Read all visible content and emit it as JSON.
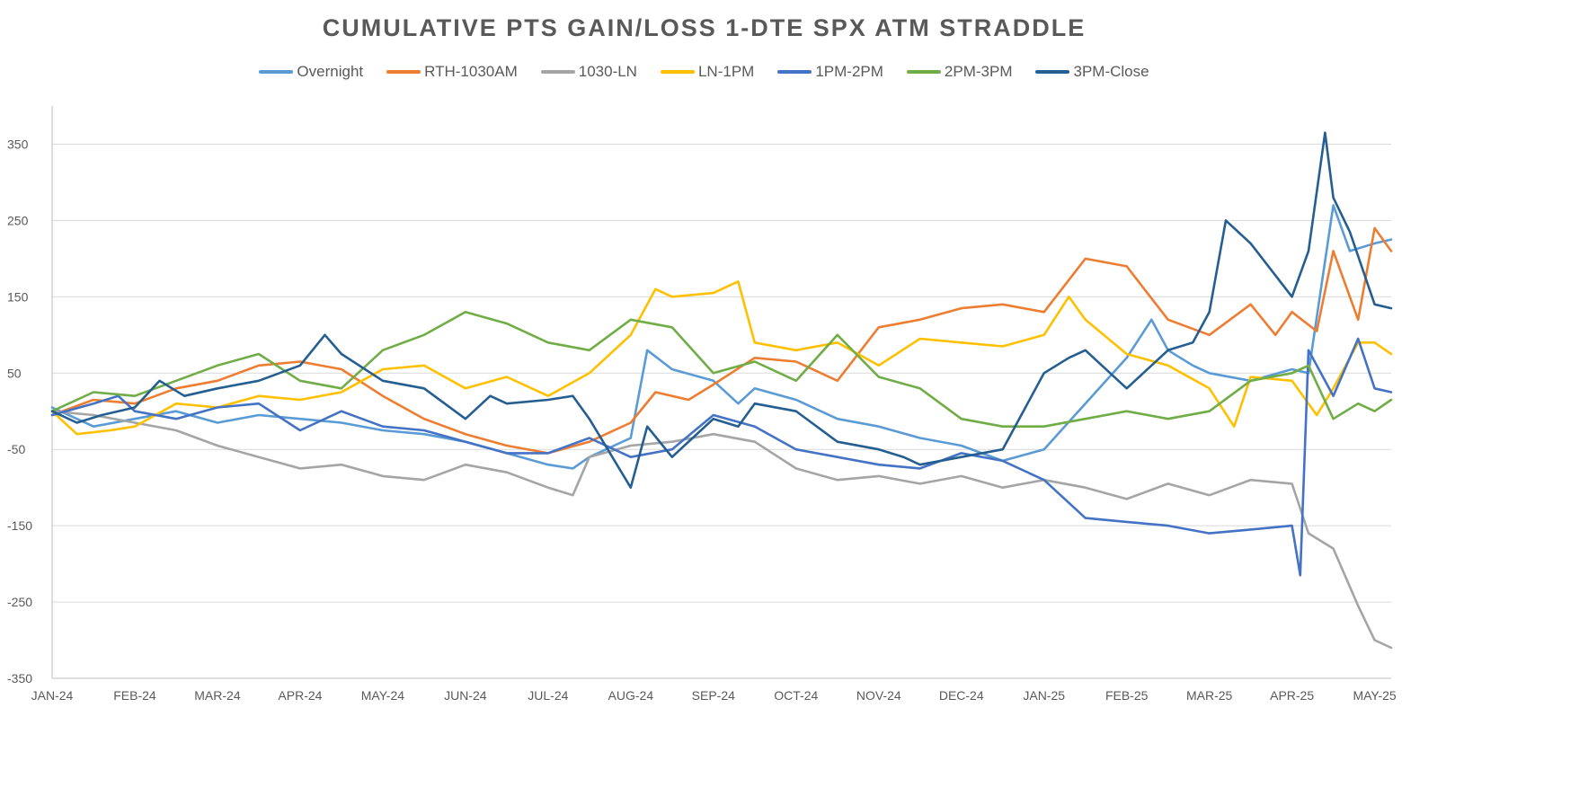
{
  "chart_data": {
    "type": "line",
    "title": "CUMULATIVE PTS GAIN/LOSS 1-DTE SPX ATM STRADDLE",
    "xlabel": "",
    "ylabel": "",
    "ylim": [
      -350,
      400
    ],
    "y_ticks": [
      "350",
      "250",
      "150",
      "50",
      "-50",
      "-150",
      "-250",
      "-350"
    ],
    "y_tick_values": [
      350,
      250,
      150,
      50,
      -50,
      -150,
      -250,
      -350
    ],
    "x_ticks": [
      "JAN-24",
      "FEB-24",
      "MAR-24",
      "APR-24",
      "MAY-24",
      "JUN-24",
      "JUL-24",
      "AUG-24",
      "SEP-24",
      "OCT-24",
      "NOV-24",
      "DEC-24",
      "JAN-25",
      "FEB-25",
      "MAR-25",
      "APR-25",
      "MAY-25"
    ],
    "x_tick_values": [
      0,
      1,
      2,
      3,
      4,
      5,
      6,
      7,
      8,
      9,
      10,
      11,
      12,
      13,
      14,
      15,
      16
    ],
    "xlim": [
      0,
      16.2
    ],
    "grid": true,
    "legend_position": "top",
    "series": [
      {
        "name": "Overnight",
        "color": "#5B9BD5",
        "x": [
          0,
          0.5,
          1,
          1.5,
          2,
          2.5,
          3,
          3.5,
          4,
          4.5,
          5,
          5.5,
          6,
          6.3,
          6.5,
          7,
          7.2,
          7.5,
          8,
          8.3,
          8.5,
          9,
          9.5,
          10,
          10.5,
          11,
          11.5,
          12,
          12.5,
          13,
          13.3,
          13.5,
          13.8,
          14,
          14.5,
          15,
          15.2,
          15.5,
          15.7,
          16,
          16.2
        ],
        "y": [
          5,
          -20,
          -10,
          0,
          -15,
          -5,
          -10,
          -15,
          -25,
          -30,
          -40,
          -55,
          -70,
          -75,
          -60,
          -35,
          80,
          55,
          40,
          10,
          30,
          15,
          -10,
          -20,
          -35,
          -45,
          -65,
          -50,
          10,
          70,
          120,
          80,
          60,
          50,
          40,
          55,
          50,
          270,
          210,
          220,
          225
        ]
      },
      {
        "name": "RTH-1030AM",
        "color": "#ED7D31",
        "x": [
          0,
          0.5,
          1,
          1.5,
          2,
          2.5,
          3,
          3.5,
          4,
          4.5,
          5,
          5.5,
          6,
          6.5,
          7,
          7.3,
          7.7,
          8,
          8.5,
          9,
          9.5,
          10,
          10.5,
          11,
          11.5,
          12,
          12.5,
          13,
          13.5,
          14,
          14.5,
          14.8,
          15,
          15.3,
          15.5,
          15.8,
          16,
          16.2
        ],
        "y": [
          -5,
          15,
          10,
          30,
          40,
          60,
          65,
          55,
          20,
          -10,
          -30,
          -45,
          -55,
          -40,
          -15,
          25,
          15,
          35,
          70,
          65,
          40,
          110,
          120,
          135,
          140,
          130,
          200,
          190,
          120,
          100,
          140,
          100,
          130,
          105,
          210,
          120,
          240,
          210
        ]
      },
      {
        "name": "1030-LN",
        "color": "#A5A5A5",
        "x": [
          0,
          0.5,
          1,
          1.5,
          2,
          2.5,
          3,
          3.5,
          4,
          4.5,
          5,
          5.5,
          6,
          6.3,
          6.5,
          7,
          7.5,
          8,
          8.5,
          9,
          9.5,
          10,
          10.5,
          11,
          11.5,
          12,
          12.5,
          13,
          13.5,
          14,
          14.5,
          15,
          15.2,
          15.5,
          15.8,
          16,
          16.2
        ],
        "y": [
          0,
          -5,
          -15,
          -25,
          -45,
          -60,
          -75,
          -70,
          -85,
          -90,
          -70,
          -80,
          -100,
          -110,
          -60,
          -45,
          -40,
          -30,
          -40,
          -75,
          -90,
          -85,
          -95,
          -85,
          -100,
          -90,
          -100,
          -115,
          -95,
          -110,
          -90,
          -95,
          -160,
          -180,
          -255,
          -300,
          -310
        ]
      },
      {
        "name": "LN-1PM",
        "color": "#FFC000",
        "x": [
          0,
          0.3,
          0.7,
          1,
          1.5,
          2,
          2.5,
          3,
          3.5,
          4,
          4.5,
          5,
          5.5,
          6,
          6.5,
          7,
          7.3,
          7.5,
          8,
          8.3,
          8.5,
          9,
          9.5,
          10,
          10.5,
          11,
          11.5,
          12,
          12.3,
          12.5,
          13,
          13.5,
          14,
          14.3,
          14.5,
          15,
          15.3,
          15.5,
          15.8,
          16,
          16.2
        ],
        "y": [
          0,
          -30,
          -25,
          -20,
          10,
          5,
          20,
          15,
          25,
          55,
          60,
          30,
          45,
          20,
          50,
          100,
          160,
          150,
          155,
          170,
          90,
          80,
          90,
          60,
          95,
          90,
          85,
          100,
          150,
          120,
          75,
          60,
          30,
          -20,
          45,
          40,
          -5,
          30,
          90,
          90,
          75
        ]
      },
      {
        "name": "1PM-2PM",
        "color": "#4472C4",
        "x": [
          0,
          0.5,
          0.8,
          1,
          1.5,
          2,
          2.5,
          3,
          3.5,
          4,
          4.5,
          5,
          5.5,
          6,
          6.5,
          7,
          7.5,
          8,
          8.5,
          9,
          9.5,
          10,
          10.5,
          11,
          11.5,
          12,
          12.5,
          13,
          13.5,
          14,
          14.5,
          15,
          15.1,
          15.2,
          15.5,
          15.8,
          16,
          16.2
        ],
        "y": [
          -5,
          10,
          20,
          0,
          -10,
          5,
          10,
          -25,
          0,
          -20,
          -25,
          -40,
          -55,
          -55,
          -35,
          -60,
          -50,
          -5,
          -20,
          -50,
          -60,
          -70,
          -75,
          -55,
          -65,
          -90,
          -140,
          -145,
          -150,
          -160,
          -155,
          -150,
          -215,
          80,
          20,
          95,
          30,
          25
        ]
      },
      {
        "name": "2PM-3PM",
        "color": "#70AD47",
        "x": [
          0,
          0.5,
          1,
          1.5,
          2,
          2.5,
          3,
          3.5,
          4,
          4.5,
          5,
          5.5,
          6,
          6.5,
          7,
          7.5,
          8,
          8.5,
          9,
          9.5,
          10,
          10.5,
          11,
          11.5,
          12,
          12.5,
          13,
          13.5,
          14,
          14.5,
          15,
          15.2,
          15.5,
          15.8,
          16,
          16.2
        ],
        "y": [
          0,
          25,
          20,
          40,
          60,
          75,
          40,
          30,
          80,
          100,
          130,
          115,
          90,
          80,
          120,
          110,
          50,
          65,
          40,
          100,
          45,
          30,
          -10,
          -20,
          -20,
          -10,
          0,
          -10,
          0,
          40,
          50,
          60,
          -10,
          10,
          0,
          15
        ]
      },
      {
        "name": "3PM-Close",
        "color": "#255E91",
        "x": [
          0,
          0.3,
          0.6,
          1,
          1.3,
          1.6,
          2,
          2.5,
          3,
          3.3,
          3.5,
          4,
          4.5,
          5,
          5.3,
          5.5,
          6,
          6.3,
          6.5,
          7,
          7.2,
          7.5,
          8,
          8.3,
          8.5,
          9,
          9.5,
          10,
          10.3,
          10.5,
          11,
          11.5,
          12,
          12.3,
          12.5,
          13,
          13.5,
          13.8,
          14,
          14.2,
          14.5,
          15,
          15.2,
          15.4,
          15.5,
          15.7,
          16,
          16.2
        ],
        "y": [
          0,
          -15,
          -5,
          5,
          40,
          20,
          30,
          40,
          60,
          100,
          75,
          40,
          30,
          -10,
          20,
          10,
          15,
          20,
          -10,
          -100,
          -20,
          -60,
          -10,
          -20,
          10,
          0,
          -40,
          -50,
          -60,
          -70,
          -60,
          -50,
          50,
          70,
          80,
          30,
          80,
          90,
          130,
          250,
          220,
          150,
          210,
          365,
          280,
          235,
          140,
          135
        ]
      }
    ]
  }
}
